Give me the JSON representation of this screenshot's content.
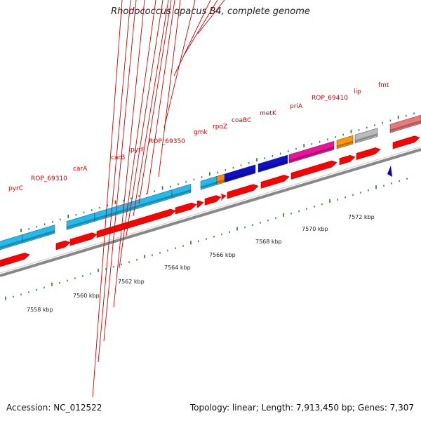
{
  "title": "Rhodococcus opacus B4, complete genome",
  "accession": "Accession: NC_012522",
  "summary": "Topology: linear; Length: 7,913,450 bp; Genes: 7,307",
  "colors": {
    "cds": "#ff0000",
    "gene_feature": "#22bbee",
    "backbone": "#888888",
    "ticks": "#1a7a1a",
    "labels": "#cc0000",
    "start_marker": "#0000cc"
  },
  "ruler": {
    "unit": "kbp",
    "tick_labels": [
      "7558 kbp",
      "7560 kbp",
      "7562 kbp",
      "7564 kbp",
      "7566 kbp",
      "7568 kbp",
      "7570 kbp",
      "7572 kbp"
    ]
  },
  "features": [
    {
      "kind": "colored",
      "name": "",
      "color": "#22bbee"
    },
    {
      "kind": "colored",
      "name": "pyrC",
      "color": "#22bbee"
    },
    {
      "kind": "colored",
      "name": "carA",
      "color": "#22bbee"
    },
    {
      "kind": "colored",
      "name": "carB",
      "color": "#22bbee"
    },
    {
      "kind": "colored",
      "name": "pyrF",
      "color": "#22bbee"
    },
    {
      "kind": "colored",
      "name": "gmk",
      "color": "#22bbee"
    },
    {
      "kind": "colored",
      "name": "rpoZ",
      "color": "#ff8800"
    },
    {
      "kind": "colored",
      "name": "coaBC",
      "color": "#1010cc"
    },
    {
      "kind": "colored",
      "name": "metK",
      "color": "#1010cc"
    },
    {
      "kind": "colored",
      "name": "priA",
      "color": "#ee1199"
    },
    {
      "kind": "colored",
      "name": "ROP_69410",
      "color": "#ff9900"
    },
    {
      "kind": "colored",
      "name": "lip",
      "color": "#bbbbbb"
    },
    {
      "kind": "colored",
      "name": "fmt",
      "color": "#ee7777"
    }
  ],
  "labels": [
    "pyrC",
    "ROP_69310",
    "carA",
    "carB",
    "pyrF",
    "ROP_69350",
    "gmk",
    "rpoZ",
    "coaBC",
    "metK",
    "priA",
    "ROP_69410",
    "lip",
    "fmt"
  ]
}
